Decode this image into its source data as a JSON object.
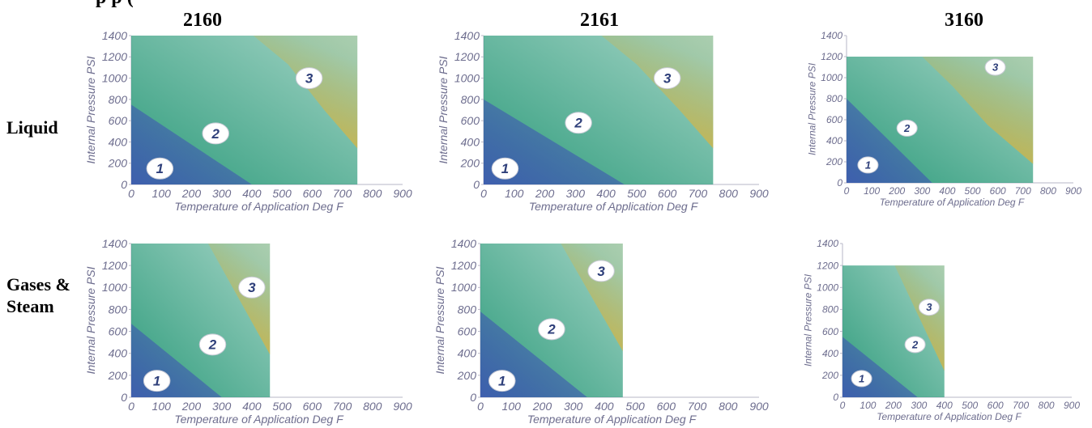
{
  "page": {
    "title_fragment": "p          p   (",
    "columns": [
      "2160",
      "2161",
      "3160"
    ],
    "rows": [
      "Liquid",
      "Gases & Steam"
    ]
  },
  "colors": {
    "zone1": "#3f5fae",
    "zone2": "#2f9c7c",
    "zone3": "#e0b43a"
  },
  "chart_data": [
    {
      "type": "area",
      "row": "Liquid",
      "column": "2160",
      "xlabel": "Temperature of Application Deg F",
      "ylabel": "Internal Pressure PSI",
      "xlim": [
        0,
        900
      ],
      "ylim": [
        0,
        1400
      ],
      "xticks": [
        0,
        100,
        200,
        300,
        400,
        500,
        600,
        700,
        800,
        900
      ],
      "yticks": [
        0,
        200,
        400,
        600,
        800,
        1000,
        1200,
        1400
      ],
      "envelope": {
        "x_max": 750,
        "y_max": 1400
      },
      "zones": [
        {
          "label": "1",
          "boundary": [
            [
              0,
              750
            ],
            [
              400,
              0
            ]
          ]
        },
        {
          "label": "2"
        },
        {
          "label": "3",
          "boundary": [
            [
              405,
              1400
            ],
            [
              520,
              1130
            ],
            [
              640,
              700
            ],
            [
              750,
              340
            ]
          ]
        }
      ],
      "badges": [
        {
          "label": "1",
          "x": 95,
          "y": 150
        },
        {
          "label": "2",
          "x": 280,
          "y": 480
        },
        {
          "label": "3",
          "x": 590,
          "y": 1000
        }
      ]
    },
    {
      "type": "area",
      "row": "Liquid",
      "column": "2161",
      "xlabel": "Temperature of Application Deg F",
      "ylabel": "Internal Pressure PSI",
      "xlim": [
        0,
        900
      ],
      "ylim": [
        0,
        1400
      ],
      "xticks": [
        0,
        100,
        200,
        300,
        400,
        500,
        600,
        700,
        800,
        900
      ],
      "yticks": [
        0,
        200,
        400,
        600,
        800,
        1000,
        1200,
        1400
      ],
      "envelope": {
        "x_max": 750,
        "y_max": 1400
      },
      "zones": [
        {
          "label": "1",
          "boundary": [
            [
              0,
              800
            ],
            [
              460,
              0
            ]
          ]
        },
        {
          "label": "2"
        },
        {
          "label": "3",
          "boundary": [
            [
              385,
              1400
            ],
            [
              500,
              1130
            ],
            [
              640,
              700
            ],
            [
              750,
              340
            ]
          ]
        }
      ],
      "badges": [
        {
          "label": "1",
          "x": 70,
          "y": 150
        },
        {
          "label": "2",
          "x": 310,
          "y": 580
        },
        {
          "label": "3",
          "x": 600,
          "y": 1000
        }
      ]
    },
    {
      "type": "area",
      "row": "Liquid",
      "column": "3160",
      "xlabel": "Temperature of Application Deg F",
      "ylabel": "Internal Pressure PSI",
      "xlim": [
        0,
        900
      ],
      "ylim": [
        0,
        1400
      ],
      "xticks": [
        0,
        100,
        200,
        300,
        400,
        500,
        600,
        700,
        800,
        900
      ],
      "yticks": [
        0,
        200,
        400,
        600,
        800,
        1000,
        1200,
        1400
      ],
      "envelope": {
        "x_max": 740,
        "y_max": 1200
      },
      "zones": [
        {
          "label": "1",
          "boundary": [
            [
              0,
              800
            ],
            [
              340,
              0
            ]
          ]
        },
        {
          "label": "2"
        },
        {
          "label": "3",
          "boundary": [
            [
              300,
              1200
            ],
            [
              420,
              920
            ],
            [
              560,
              550
            ],
            [
              740,
              180
            ]
          ]
        }
      ],
      "badges": [
        {
          "label": "1",
          "x": 85,
          "y": 170
        },
        {
          "label": "2",
          "x": 240,
          "y": 520
        },
        {
          "label": "3",
          "x": 590,
          "y": 1100
        }
      ]
    },
    {
      "type": "area",
      "row": "Gases & Steam",
      "column": "2160",
      "xlabel": "Temperature of Application Deg F",
      "ylabel": "Internal Pressure PSI",
      "xlim": [
        0,
        900
      ],
      "ylim": [
        0,
        1400
      ],
      "xticks": [
        0,
        100,
        200,
        300,
        400,
        500,
        600,
        700,
        800,
        900
      ],
      "yticks": [
        0,
        200,
        400,
        600,
        800,
        1000,
        1200,
        1400
      ],
      "envelope": {
        "x_max": 460,
        "y_max": 1400
      },
      "zones": [
        {
          "label": "1",
          "boundary": [
            [
              0,
              670
            ],
            [
              300,
              0
            ]
          ]
        },
        {
          "label": "2"
        },
        {
          "label": "3",
          "boundary": [
            [
              255,
              1400
            ],
            [
              460,
              390
            ]
          ]
        }
      ],
      "badges": [
        {
          "label": "1",
          "x": 85,
          "y": 150
        },
        {
          "label": "2",
          "x": 270,
          "y": 480
        },
        {
          "label": "3",
          "x": 400,
          "y": 1000
        }
      ]
    },
    {
      "type": "area",
      "row": "Gases & Steam",
      "column": "2161",
      "xlabel": "Temperature of Application Deg F",
      "ylabel": "Internal Pressure PSI",
      "xlim": [
        0,
        900
      ],
      "ylim": [
        0,
        1400
      ],
      "xticks": [
        0,
        100,
        200,
        300,
        400,
        500,
        600,
        700,
        800,
        900
      ],
      "yticks": [
        0,
        200,
        400,
        600,
        800,
        1000,
        1200,
        1400
      ],
      "envelope": {
        "x_max": 460,
        "y_max": 1400
      },
      "zones": [
        {
          "label": "1",
          "boundary": [
            [
              0,
              780
            ],
            [
              345,
              0
            ]
          ]
        },
        {
          "label": "2"
        },
        {
          "label": "3",
          "boundary": [
            [
              260,
              1400
            ],
            [
              460,
              420
            ]
          ]
        }
      ],
      "badges": [
        {
          "label": "1",
          "x": 70,
          "y": 150
        },
        {
          "label": "2",
          "x": 230,
          "y": 620
        },
        {
          "label": "3",
          "x": 390,
          "y": 1150
        }
      ]
    },
    {
      "type": "area",
      "row": "Gases & Steam",
      "column": "3160",
      "xlabel": "Temperature of Application Deg F",
      "ylabel": "Internal Pressure PSI",
      "xlim": [
        0,
        900
      ],
      "ylim": [
        0,
        1400
      ],
      "xticks": [
        0,
        100,
        200,
        300,
        400,
        500,
        600,
        700,
        800,
        900
      ],
      "yticks": [
        0,
        200,
        400,
        600,
        800,
        1000,
        1200,
        1400
      ],
      "envelope": {
        "x_max": 400,
        "y_max": 1200
      },
      "zones": [
        {
          "label": "1",
          "boundary": [
            [
              0,
              550
            ],
            [
              295,
              0
            ]
          ]
        },
        {
          "label": "2"
        },
        {
          "label": "3",
          "boundary": [
            [
              205,
              1200
            ],
            [
              400,
              240
            ]
          ]
        }
      ],
      "badges": [
        {
          "label": "1",
          "x": 75,
          "y": 170
        },
        {
          "label": "2",
          "x": 285,
          "y": 480
        },
        {
          "label": "3",
          "x": 340,
          "y": 820
        }
      ]
    }
  ]
}
